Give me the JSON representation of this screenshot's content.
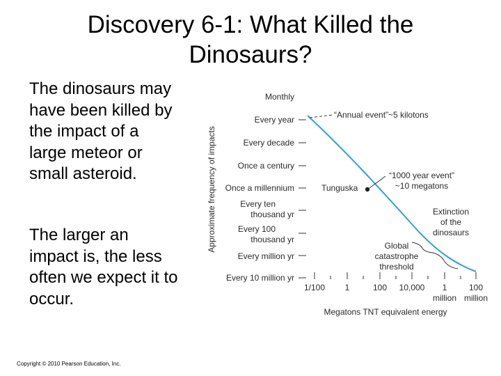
{
  "slide": {
    "title_line1": "Discovery 6-1: What Killed the",
    "title_line2": "Dinosaurs?",
    "paragraph1": "The dinosaurs may have been killed by the impact of a large meteor or small asteroid.",
    "paragraph2": "The larger an impact is, the less often we expect it to occur.",
    "copyright": "Copyright © 2010 Pearson Education, Inc."
  },
  "chart_data": {
    "type": "line",
    "xlabel": "Megatons TNT equivalent energy",
    "ylabel": "Approximate frequency of impacts",
    "x_scale": "log",
    "y_scale": "log",
    "x_ticks": [
      "1/100",
      "1",
      "100",
      "10,000",
      "1 million",
      "100 million"
    ],
    "y_ticks": [
      "Monthly",
      "Every year",
      "Every decade",
      "Once a century",
      "Once a millennium",
      "Every ten thousand yr",
      "Every 100 thousand yr",
      "Every million yr",
      "Every 10 million yr"
    ],
    "series": [
      {
        "color": "#29a3d6",
        "points": [
          {
            "x": "1/100",
            "y": "Every year"
          },
          {
            "x": "100",
            "y": "Once a millennium"
          },
          {
            "x": "1 million",
            "y": "Every million yr"
          },
          {
            "x": "100 million",
            "y": "Every 10 million yr"
          }
        ]
      }
    ],
    "annotations": [
      {
        "text_line1": "“Annual event”~5 kilotons",
        "text_line2": ""
      },
      {
        "text_line1": "“1000 year event”",
        "text_line2": "~10 megatons"
      },
      {
        "text_line1": "Tunguska",
        "text_line2": ""
      },
      {
        "text_line1": "Extinction",
        "text_line2": "of the",
        "text_line3": "dinosaurs"
      },
      {
        "text_line1": "Global",
        "text_line2": "catastrophe",
        "text_line3": "threshold"
      }
    ]
  }
}
